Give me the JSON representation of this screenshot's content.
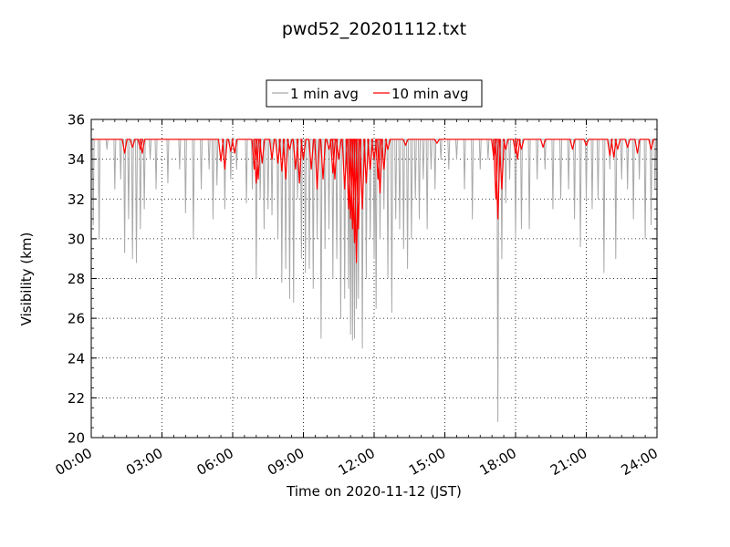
{
  "chart_data": {
    "type": "line",
    "title": "pwd52_20201112.txt",
    "xlabel": "Time on 2020-11-12 (JST)",
    "ylabel": "Visibility (km)",
    "xlim": [
      "00:00",
      "24:00"
    ],
    "ylim": [
      20,
      36
    ],
    "x_ticks": [
      "00:00",
      "03:00",
      "06:00",
      "09:00",
      "12:00",
      "15:00",
      "18:00",
      "21:00",
      "24:00"
    ],
    "y_ticks": [
      "20",
      "22",
      "24",
      "26",
      "28",
      "30",
      "32",
      "34",
      "36"
    ],
    "grid": true,
    "legend_position": "top-center",
    "series": [
      {
        "name": "1 min avg",
        "color": "#a9a9a9",
        "baseline": 35,
        "dips": [
          [
            "00:05",
            30.7
          ],
          [
            "00:20",
            30.0
          ],
          [
            "00:40",
            34.5
          ],
          [
            "01:00",
            32.5
          ],
          [
            "01:15",
            33.0
          ],
          [
            "01:25",
            29.3
          ],
          [
            "01:35",
            31.0
          ],
          [
            "01:45",
            29.0
          ],
          [
            "01:55",
            28.8
          ],
          [
            "02:05",
            30.5
          ],
          [
            "02:15",
            31.5
          ],
          [
            "02:30",
            34.0
          ],
          [
            "02:45",
            32.5
          ],
          [
            "03:15",
            32.8
          ],
          [
            "03:45",
            33.5
          ],
          [
            "04:00",
            31.3
          ],
          [
            "04:20",
            30.0
          ],
          [
            "04:40",
            32.5
          ],
          [
            "05:00",
            33.5
          ],
          [
            "05:10",
            31.0
          ],
          [
            "05:20",
            32.7
          ],
          [
            "05:40",
            31.5
          ],
          [
            "05:55",
            33.0
          ],
          [
            "06:10",
            33.5
          ],
          [
            "06:35",
            31.8
          ],
          [
            "06:50",
            32.5
          ],
          [
            "07:00",
            28.0
          ],
          [
            "07:10",
            32.0
          ],
          [
            "07:20",
            30.5
          ],
          [
            "07:30",
            31.5
          ],
          [
            "07:40",
            31.2
          ],
          [
            "07:55",
            30.0
          ],
          [
            "08:05",
            27.8
          ],
          [
            "08:15",
            28.5
          ],
          [
            "08:25",
            27.0
          ],
          [
            "08:35",
            26.8
          ],
          [
            "08:45",
            32.0
          ],
          [
            "08:55",
            29.0
          ],
          [
            "09:05",
            28.3
          ],
          [
            "09:15",
            28.5
          ],
          [
            "09:25",
            27.5
          ],
          [
            "09:35",
            30.0
          ],
          [
            "09:45",
            25.0
          ],
          [
            "09:55",
            29.5
          ],
          [
            "10:05",
            30.5
          ],
          [
            "10:15",
            28.0
          ],
          [
            "10:25",
            29.0
          ],
          [
            "10:35",
            26.0
          ],
          [
            "10:45",
            27.0
          ],
          [
            "10:55",
            27.5
          ],
          [
            "11:00",
            25.2
          ],
          [
            "11:05",
            24.9
          ],
          [
            "11:10",
            25.0
          ],
          [
            "11:15",
            26.5
          ],
          [
            "11:20",
            27.0
          ],
          [
            "11:30",
            24.5
          ],
          [
            "11:40",
            28.0
          ],
          [
            "11:50",
            30.0
          ],
          [
            "12:00",
            29.0
          ],
          [
            "12:05",
            26.5
          ],
          [
            "12:15",
            30.0
          ],
          [
            "12:25",
            31.5
          ],
          [
            "12:35",
            28.0
          ],
          [
            "12:45",
            26.3
          ],
          [
            "12:55",
            31.0
          ],
          [
            "13:05",
            30.5
          ],
          [
            "13:15",
            29.5
          ],
          [
            "13:25",
            28.5
          ],
          [
            "13:35",
            30.0
          ],
          [
            "13:45",
            32.0
          ],
          [
            "13:55",
            31.0
          ],
          [
            "14:05",
            33.0
          ],
          [
            "14:15",
            30.5
          ],
          [
            "14:25",
            33.5
          ],
          [
            "14:35",
            32.5
          ],
          [
            "14:50",
            34.0
          ],
          [
            "15:10",
            33.5
          ],
          [
            "15:30",
            34.0
          ],
          [
            "15:50",
            32.5
          ],
          [
            "16:10",
            31.0
          ],
          [
            "16:30",
            33.5
          ],
          [
            "16:50",
            34.0
          ],
          [
            "17:05",
            34.0
          ],
          [
            "17:15",
            20.8
          ],
          [
            "17:25",
            29.0
          ],
          [
            "17:35",
            31.8
          ],
          [
            "17:45",
            33.0
          ],
          [
            "18:00",
            30.0
          ],
          [
            "18:15",
            30.5
          ],
          [
            "18:35",
            30.5
          ],
          [
            "18:55",
            33.0
          ],
          [
            "19:15",
            33.5
          ],
          [
            "19:35",
            31.5
          ],
          [
            "19:55",
            32.0
          ],
          [
            "20:15",
            32.5
          ],
          [
            "20:30",
            31.0
          ],
          [
            "20:45",
            29.6
          ],
          [
            "21:00",
            32.0
          ],
          [
            "21:15",
            31.5
          ],
          [
            "21:30",
            32.0
          ],
          [
            "21:45",
            28.3
          ],
          [
            "22:00",
            33.5
          ],
          [
            "22:15",
            29.0
          ],
          [
            "22:30",
            33.0
          ],
          [
            "22:45",
            32.5
          ],
          [
            "23:00",
            31.0
          ],
          [
            "23:15",
            33.0
          ],
          [
            "23:30",
            30.0
          ],
          [
            "23:45",
            30.7
          ],
          [
            "23:55",
            32.5
          ]
        ]
      },
      {
        "name": "10 min avg",
        "color": "#ff0000",
        "baseline": 35,
        "dips": [
          [
            "01:25",
            34.3
          ],
          [
            "01:45",
            34.6
          ],
          [
            "02:05",
            34.5
          ],
          [
            "02:10",
            34.3
          ],
          [
            "05:30",
            33.9
          ],
          [
            "05:40",
            33.5
          ],
          [
            "05:55",
            34.4
          ],
          [
            "06:05",
            34.3
          ],
          [
            "06:55",
            33.5
          ],
          [
            "07:00",
            32.8
          ],
          [
            "07:05",
            33.0
          ],
          [
            "07:15",
            33.8
          ],
          [
            "07:40",
            34.0
          ],
          [
            "07:55",
            33.8
          ],
          [
            "08:05",
            33.4
          ],
          [
            "08:15",
            33.0
          ],
          [
            "08:25",
            34.5
          ],
          [
            "08:40",
            33.5
          ],
          [
            "08:50",
            32.8
          ],
          [
            "09:00",
            34.0
          ],
          [
            "09:20",
            33.5
          ],
          [
            "09:35",
            32.5
          ],
          [
            "09:50",
            33.0
          ],
          [
            "10:05",
            34.5
          ],
          [
            "10:15",
            33.3
          ],
          [
            "10:20",
            33.0
          ],
          [
            "10:30",
            34.0
          ],
          [
            "10:45",
            32.5
          ],
          [
            "10:55",
            31.5
          ],
          [
            "11:00",
            31.0
          ],
          [
            "11:05",
            30.5
          ],
          [
            "11:10",
            29.8
          ],
          [
            "11:15",
            28.8
          ],
          [
            "11:20",
            30.5
          ],
          [
            "11:30",
            31.5
          ],
          [
            "11:40",
            32.8
          ],
          [
            "11:50",
            33.5
          ],
          [
            "12:00",
            34.0
          ],
          [
            "12:10",
            33.0
          ],
          [
            "12:15",
            32.3
          ],
          [
            "12:25",
            33.5
          ],
          [
            "12:35",
            34.5
          ],
          [
            "13:20",
            34.7
          ],
          [
            "14:40",
            34.8
          ],
          [
            "17:05",
            34.0
          ],
          [
            "17:10",
            32.0
          ],
          [
            "17:15",
            31.0
          ],
          [
            "17:25",
            32.5
          ],
          [
            "17:35",
            34.5
          ],
          [
            "18:00",
            34.3
          ],
          [
            "18:05",
            34.0
          ],
          [
            "18:15",
            34.5
          ],
          [
            "19:10",
            34.6
          ],
          [
            "20:25",
            34.5
          ],
          [
            "21:00",
            34.7
          ],
          [
            "22:00",
            34.2
          ],
          [
            "22:10",
            34.1
          ],
          [
            "22:20",
            34.5
          ],
          [
            "22:45",
            34.6
          ],
          [
            "23:10",
            34.3
          ],
          [
            "23:45",
            34.5
          ]
        ]
      }
    ]
  }
}
